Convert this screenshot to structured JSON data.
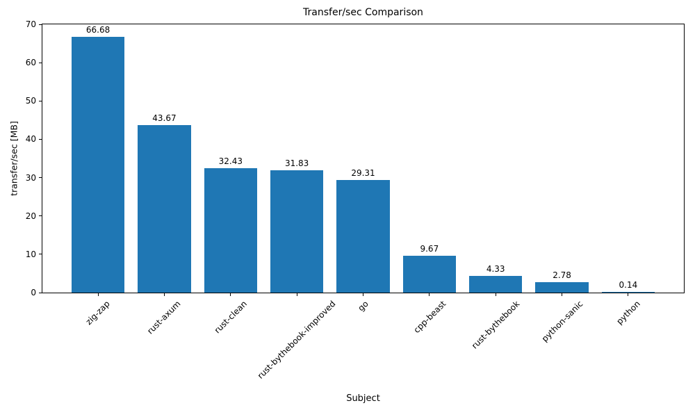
{
  "chart_data": {
    "type": "bar",
    "title": "Transfer/sec Comparison",
    "xlabel": "Subject",
    "ylabel": "transfer/sec [MB]",
    "categories": [
      "zig-zap",
      "rust-axum",
      "rust-clean",
      "rust-bythebook-improved",
      "go",
      "cpp-beast",
      "rust-bythebook",
      "python-sanic",
      "python"
    ],
    "values": [
      66.68,
      43.67,
      32.43,
      31.83,
      29.31,
      9.67,
      4.33,
      2.78,
      0.14
    ],
    "value_labels": [
      "66.68",
      "43.67",
      "32.43",
      "31.83",
      "29.31",
      "9.67",
      "4.33",
      "2.78",
      "0.14"
    ],
    "ylim": [
      0,
      70
    ],
    "yticks": [
      0,
      10,
      20,
      30,
      40,
      50,
      60,
      70
    ],
    "xlim": [
      -0.84,
      8.84
    ],
    "bar_width_units": 0.8,
    "bar_color": "#1f77b4",
    "background_color": "#ffffff",
    "text_color": "#000000",
    "grid": false,
    "legend": "none",
    "x_tick_rotation_deg": 45
  }
}
